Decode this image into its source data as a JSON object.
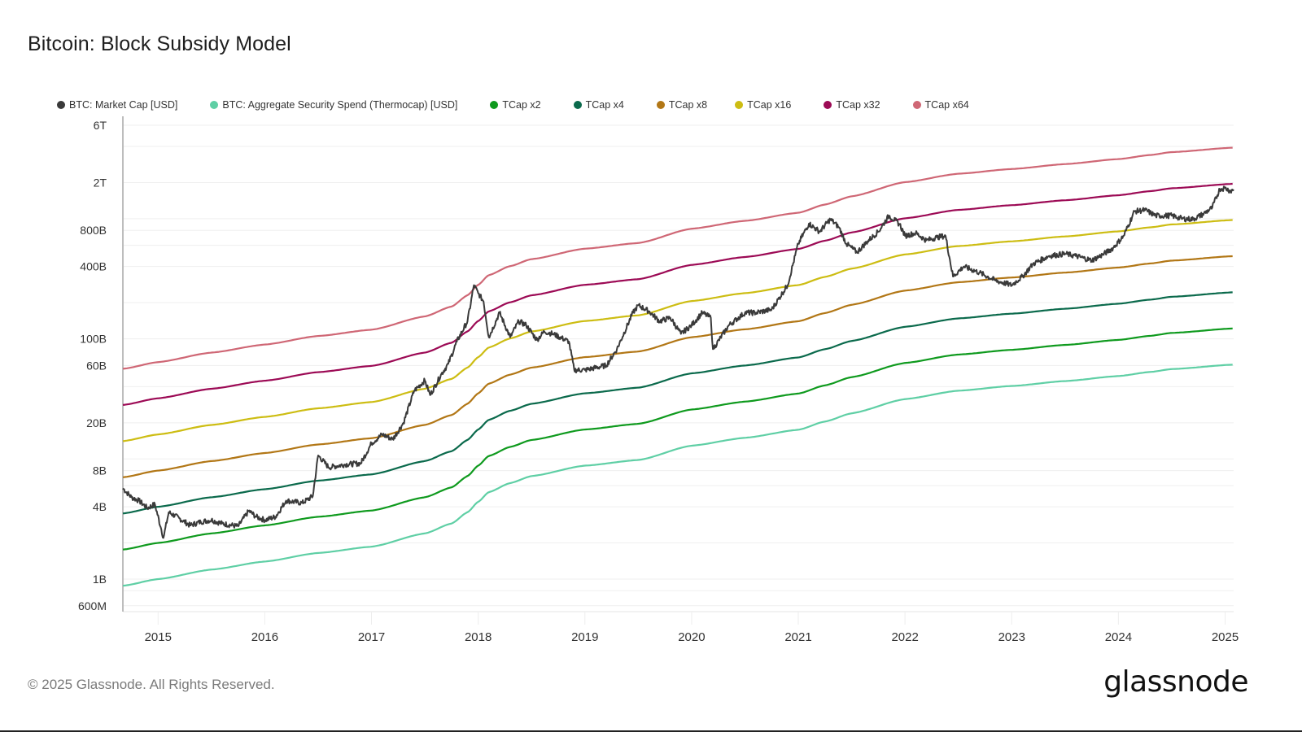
{
  "header": {
    "title": "Bitcoin: Block Subsidy Model"
  },
  "footer": {
    "copyright": "© 2025 Glassnode. All Rights Reserved.",
    "logo_text": "glassnode"
  },
  "legend": [
    {
      "key": "mcap",
      "label": "BTC: Market Cap [USD]",
      "color": "#3a3a3a"
    },
    {
      "key": "tcap",
      "label": "BTC: Aggregate Security Spend (Thermocap) [USD]",
      "color": "#5fcfa5"
    },
    {
      "key": "x2",
      "label": "TCap x2",
      "color": "#0f9a1e"
    },
    {
      "key": "x4",
      "label": "TCap x4",
      "color": "#0b6a4c"
    },
    {
      "key": "x8",
      "label": "TCap x8",
      "color": "#b27716"
    },
    {
      "key": "x16",
      "label": "TCap x16",
      "color": "#cdbd13"
    },
    {
      "key": "x32",
      "label": "TCap x32",
      "color": "#9c0a55"
    },
    {
      "key": "x64",
      "label": "TCap x64",
      "color": "#cf6775"
    }
  ],
  "chart_data": {
    "type": "line",
    "title": "Bitcoin: Block Subsidy Model",
    "xlabel": "",
    "ylabel": "",
    "yscale": "log",
    "xlim": [
      2014.67,
      2025.08
    ],
    "ylim": [
      550000000,
      7500000000000
    ],
    "grid": true,
    "legend_position": "top-left",
    "x_ticks": [
      {
        "value": 2015,
        "label": "2015"
      },
      {
        "value": 2016,
        "label": "2016"
      },
      {
        "value": 2017,
        "label": "2017"
      },
      {
        "value": 2018,
        "label": "2018"
      },
      {
        "value": 2019,
        "label": "2019"
      },
      {
        "value": 2020,
        "label": "2020"
      },
      {
        "value": 2021,
        "label": "2021"
      },
      {
        "value": 2022,
        "label": "2022"
      },
      {
        "value": 2023,
        "label": "2023"
      },
      {
        "value": 2024,
        "label": "2024"
      },
      {
        "value": 2025,
        "label": "2025"
      }
    ],
    "y_ticks": [
      {
        "value": 6000000000000,
        "label": "6T"
      },
      {
        "value": 2000000000000,
        "label": "2T"
      },
      {
        "value": 800000000000,
        "label": "800B"
      },
      {
        "value": 400000000000,
        "label": "400B"
      },
      {
        "value": 100000000000,
        "label": "100B"
      },
      {
        "value": 60000000000,
        "label": "60B"
      },
      {
        "value": 20000000000,
        "label": "20B"
      },
      {
        "value": 8000000000,
        "label": "8B"
      },
      {
        "value": 4000000000,
        "label": "4B"
      },
      {
        "value": 1000000000,
        "label": "1B"
      },
      {
        "value": 600000000,
        "label": "600M"
      }
    ],
    "gridlines": [
      6000000000000,
      4000000000000,
      2000000000000,
      1000000000000,
      800000000000,
      600000000000,
      400000000000,
      200000000000,
      100000000000,
      60000000000,
      40000000000,
      20000000000,
      10000000000,
      8000000000,
      6000000000,
      4000000000,
      2000000000,
      1000000000,
      800000000,
      600000000
    ],
    "thermocap": {
      "x": [
        2014.67,
        2015.0,
        2015.5,
        2016.0,
        2016.5,
        2017.0,
        2017.5,
        2017.75,
        2017.9,
        2018.0,
        2018.1,
        2018.3,
        2018.5,
        2019.0,
        2019.5,
        2020.0,
        2020.5,
        2021.0,
        2021.25,
        2021.5,
        2022.0,
        2022.5,
        2023.0,
        2023.5,
        2024.0,
        2024.3,
        2024.5,
        2025.08
      ],
      "values": [
        880000000,
        1000000000,
        1200000000,
        1400000000,
        1650000000,
        1860000000,
        2400000000,
        2900000000,
        3600000000,
        4400000000,
        5300000000,
        6300000000,
        7200000000,
        8800000000,
        9800000000,
        12900000000,
        15000000000,
        17500000000,
        20500000000,
        24000000000,
        31500000000,
        37000000000,
        40500000000,
        44500000000,
        49000000000,
        53000000000,
        56000000000,
        61000000000
      ]
    },
    "multiples": [
      2,
      4,
      8,
      16,
      32,
      64
    ],
    "market_cap": {
      "x": [
        2014.67,
        2014.75,
        2014.82,
        2014.9,
        2014.97,
        2015.03,
        2015.05,
        2015.1,
        2015.2,
        2015.3,
        2015.4,
        2015.5,
        2015.6,
        2015.75,
        2015.85,
        2015.92,
        2016.0,
        2016.1,
        2016.2,
        2016.35,
        2016.45,
        2016.5,
        2016.6,
        2016.75,
        2016.9,
        2017.0,
        2017.1,
        2017.2,
        2017.3,
        2017.4,
        2017.5,
        2017.55,
        2017.65,
        2017.72,
        2017.8,
        2017.9,
        2017.96,
        2018.0,
        2018.05,
        2018.1,
        2018.2,
        2018.3,
        2018.38,
        2018.45,
        2018.55,
        2018.62,
        2018.7,
        2018.85,
        2018.9,
        2019.0,
        2019.2,
        2019.3,
        2019.45,
        2019.5,
        2019.6,
        2019.7,
        2019.8,
        2019.9,
        2020.0,
        2020.1,
        2020.18,
        2020.2,
        2020.35,
        2020.5,
        2020.6,
        2020.75,
        2020.9,
        2021.0,
        2021.1,
        2021.2,
        2021.3,
        2021.38,
        2021.45,
        2021.55,
        2021.65,
        2021.75,
        2021.85,
        2021.95,
        2022.0,
        2022.1,
        2022.2,
        2022.3,
        2022.38,
        2022.45,
        2022.55,
        2022.7,
        2022.85,
        2023.0,
        2023.1,
        2023.2,
        2023.35,
        2023.5,
        2023.6,
        2023.75,
        2023.85,
        2023.95,
        2024.05,
        2024.15,
        2024.25,
        2024.35,
        2024.5,
        2024.6,
        2024.7,
        2024.8,
        2024.88,
        2024.95,
        2025.0,
        2025.05,
        2025.08
      ],
      "values": [
        5700000000,
        4800000000,
        4500000000,
        3900000000,
        4200000000,
        2600000000,
        2200000000,
        3600000000,
        3200000000,
        2800000000,
        3000000000,
        3100000000,
        2900000000,
        2750000000,
        3700000000,
        3300000000,
        3100000000,
        3300000000,
        4500000000,
        4300000000,
        4900000000,
        10700000000,
        8500000000,
        9000000000,
        9200000000,
        13500000000,
        16000000000,
        14600000000,
        20000000000,
        37000000000,
        45000000000,
        34000000000,
        50000000000,
        62000000000,
        95000000000,
        140000000000,
        280000000000,
        240000000000,
        205000000000,
        103000000000,
        165000000000,
        103000000000,
        140000000000,
        130000000000,
        98000000000,
        115000000000,
        110000000000,
        95000000000,
        55000000000,
        55000000000,
        60000000000,
        82000000000,
        165000000000,
        190000000000,
        170000000000,
        140000000000,
        150000000000,
        110000000000,
        130000000000,
        165000000000,
        150000000000,
        82000000000,
        130000000000,
        165000000000,
        165000000000,
        175000000000,
        280000000000,
        620000000000,
        910000000000,
        780000000000,
        990000000000,
        850000000000,
        620000000000,
        525000000000,
        650000000000,
        780000000000,
        1060000000000,
        900000000000,
        720000000000,
        760000000000,
        660000000000,
        700000000000,
        720000000000,
        330000000000,
        400000000000,
        355000000000,
        305000000000,
        280000000000,
        330000000000,
        420000000000,
        490000000000,
        510000000000,
        490000000000,
        450000000000,
        500000000000,
        570000000000,
        720000000000,
        1150000000000,
        1180000000000,
        1060000000000,
        1060000000000,
        1000000000000,
        990000000000,
        1100000000000,
        1240000000000,
        1770000000000,
        1800000000000,
        1700000000000,
        1750000000000
      ]
    }
  }
}
